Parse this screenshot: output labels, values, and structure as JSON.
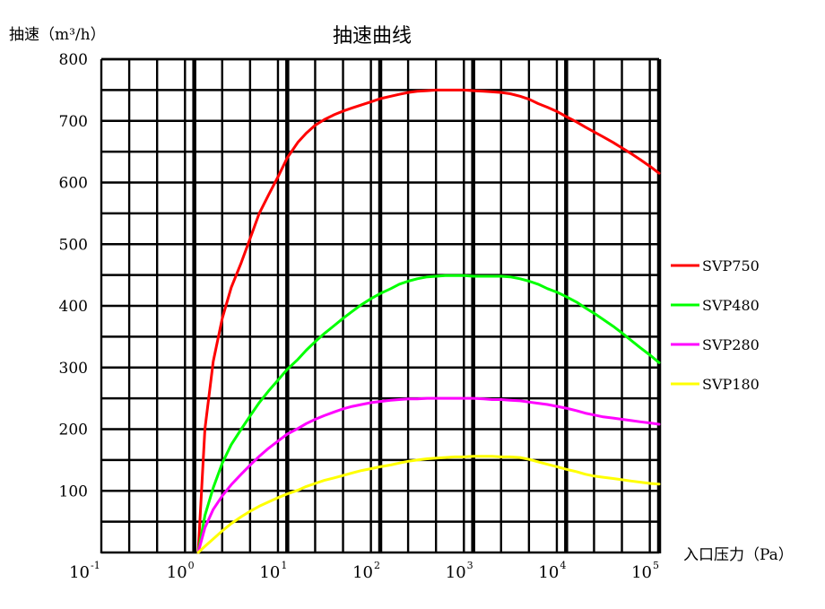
{
  "chart_data": {
    "type": "line",
    "title": "抽速曲线",
    "ylabel": "抽速（m³/h）",
    "xlabel": "入口压力（Pa）",
    "x_scale": "log",
    "xlim": [
      0.1,
      100000
    ],
    "ylim": [
      0,
      800
    ],
    "y_ticks": [
      100,
      200,
      300,
      400,
      500,
      600,
      700,
      800
    ],
    "x_ticks": [
      {
        "base": "10",
        "exp": "-1"
      },
      {
        "base": "10",
        "exp": "0"
      },
      {
        "base": "10",
        "exp": "1"
      },
      {
        "base": "10",
        "exp": "2"
      },
      {
        "base": "10",
        "exp": "3"
      },
      {
        "base": "10",
        "exp": "4"
      },
      {
        "base": "10",
        "exp": "5"
      }
    ],
    "grid": true,
    "legend_position": "right",
    "series": [
      {
        "name": "SVP750",
        "color": "#ff0000",
        "x": [
          1.1,
          1.3,
          1.6,
          2,
          2.5,
          3.2,
          4,
          5,
          6.3,
          8,
          10,
          13,
          16,
          20,
          25,
          32,
          40,
          50,
          63,
          80,
          100,
          130,
          160,
          200,
          250,
          320,
          400,
          500,
          630,
          800,
          1000,
          1300,
          1600,
          2000,
          2500,
          3200,
          4000,
          5000,
          6300,
          8000,
          10000,
          13000,
          16000,
          20000,
          25000,
          32000,
          40000,
          50000,
          63000,
          80000,
          100000
        ],
        "y": [
          0,
          200,
          310,
          380,
          430,
          470,
          510,
          550,
          580,
          610,
          640,
          665,
          680,
          693,
          702,
          710,
          716,
          721,
          726,
          731,
          736,
          740,
          743,
          746,
          748,
          749,
          750,
          750,
          750,
          750,
          749,
          748,
          747,
          746,
          744,
          740,
          735,
          728,
          722,
          715,
          707,
          698,
          690,
          682,
          674,
          665,
          656,
          647,
          637,
          626,
          615
        ]
      },
      {
        "name": "SVP480",
        "color": "#00ff00",
        "x": [
          1.1,
          1.3,
          1.6,
          2,
          2.5,
          3.2,
          4,
          5,
          6.3,
          8,
          10,
          13,
          16,
          20,
          25,
          32,
          40,
          50,
          63,
          80,
          100,
          130,
          160,
          200,
          250,
          320,
          400,
          500,
          630,
          800,
          1000,
          1300,
          1600,
          2000,
          2500,
          3200,
          4000,
          5000,
          6300,
          8000,
          10000,
          13000,
          16000,
          20000,
          25000,
          32000,
          40000,
          50000,
          63000,
          80000,
          100000
        ],
        "y": [
          0,
          60,
          105,
          145,
          175,
          200,
          222,
          243,
          262,
          280,
          297,
          313,
          328,
          342,
          355,
          368,
          380,
          391,
          402,
          412,
          420,
          428,
          435,
          440,
          444,
          447,
          448,
          449,
          449,
          449,
          448,
          448,
          448,
          448,
          447,
          444,
          440,
          435,
          428,
          422,
          415,
          406,
          397,
          388,
          378,
          367,
          356,
          344,
          332,
          320,
          308
        ]
      },
      {
        "name": "SVP280",
        "color": "#ff00ff",
        "x": [
          1.1,
          1.3,
          1.6,
          2,
          2.5,
          3.2,
          4,
          5,
          6.3,
          8,
          10,
          13,
          16,
          20,
          25,
          32,
          40,
          50,
          63,
          80,
          100,
          130,
          160,
          200,
          250,
          320,
          400,
          500,
          630,
          800,
          1000,
          1300,
          1600,
          2000,
          2500,
          3200,
          4000,
          5000,
          6300,
          8000,
          10000,
          13000,
          16000,
          20000,
          25000,
          32000,
          40000,
          50000,
          63000,
          80000,
          100000
        ],
        "y": [
          0,
          40,
          70,
          92,
          110,
          127,
          142,
          156,
          169,
          181,
          192,
          201,
          209,
          216,
          222,
          228,
          233,
          237,
          240,
          243,
          245,
          247,
          248,
          249,
          249,
          250,
          250,
          250,
          250,
          250,
          250,
          249,
          248,
          248,
          247,
          246,
          244,
          242,
          240,
          237,
          234,
          230,
          226,
          223,
          220,
          218,
          216,
          214,
          212,
          210,
          208
        ]
      },
      {
        "name": "SVP180",
        "color": "#ffff00",
        "x": [
          1.1,
          1.3,
          1.6,
          2,
          2.5,
          3.2,
          4,
          5,
          6.3,
          8,
          10,
          13,
          16,
          20,
          25,
          32,
          40,
          50,
          63,
          80,
          100,
          130,
          160,
          200,
          250,
          320,
          400,
          500,
          630,
          800,
          1000,
          1300,
          1600,
          2000,
          2500,
          3200,
          4000,
          5000,
          6300,
          8000,
          10000,
          13000,
          16000,
          20000,
          25000,
          32000,
          40000,
          50000,
          63000,
          80000,
          100000
        ],
        "y": [
          0,
          10,
          22,
          35,
          47,
          58,
          67,
          75,
          82,
          89,
          95,
          101,
          107,
          112,
          117,
          121,
          125,
          129,
          133,
          136,
          139,
          142,
          145,
          148,
          150,
          152,
          153,
          154,
          155,
          155,
          156,
          156,
          156,
          155,
          155,
          154,
          151,
          147,
          143,
          139,
          135,
          131,
          127,
          124,
          122,
          120,
          118,
          116,
          114,
          112,
          111
        ]
      }
    ]
  }
}
